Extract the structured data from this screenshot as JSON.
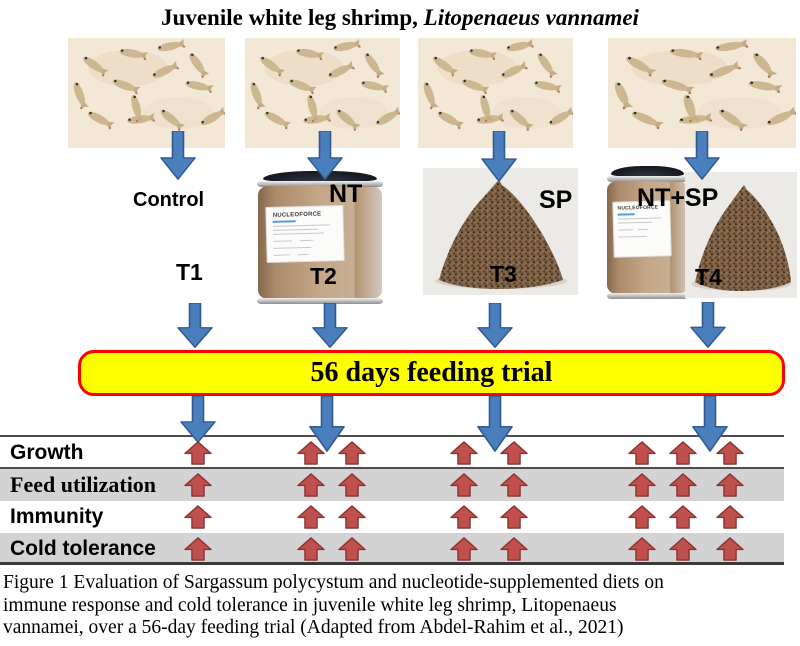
{
  "title": {
    "prefix": "Juvenile white leg shrimp, ",
    "species": "Litopenaeus vannamei"
  },
  "columns": [
    {
      "diet": "Control",
      "treatment": "T1",
      "supplement_items": []
    },
    {
      "diet": "NT",
      "treatment": "T2",
      "supplement_items": [
        "nucleotide-canister"
      ]
    },
    {
      "diet": "SP",
      "treatment": "T3",
      "supplement_items": [
        "sargassum-powder"
      ]
    },
    {
      "diet": "NT+SP",
      "treatment": "T4",
      "supplement_items": [
        "nucleotide-canister",
        "sargassum-powder"
      ]
    }
  ],
  "canister_brand": "NUCLEOFORCE",
  "banner": {
    "label": "56 days feeding trial"
  },
  "outcome_table": {
    "rows": [
      {
        "label": "Growth",
        "arrows_per_treatment": [
          1,
          2,
          2,
          3
        ]
      },
      {
        "label": "Feed utilization",
        "arrows_per_treatment": [
          1,
          2,
          2,
          3
        ]
      },
      {
        "label": "Immunity",
        "arrows_per_treatment": [
          1,
          2,
          2,
          3
        ]
      },
      {
        "label": "Cold tolerance",
        "arrows_per_treatment": [
          1,
          2,
          2,
          3
        ]
      }
    ]
  },
  "caption": {
    "lines": [
      "Figure 1 Evaluation of Sargassum polycystum and nucleotide-supplemented diets on",
      "immune response and cold tolerance in juvenile white leg shrimp, Litopenaeus",
      "vannamei, over a 56-day feeding trial (Adapted from Abdel-Rahim et al., 2021)"
    ]
  },
  "colors": {
    "arrow_blue": "#4a7ebc",
    "arrow_blue_stroke": "#2f5a92",
    "arrow_red": "#c0504d",
    "arrow_red_stroke": "#8a3432",
    "banner_fill": "#ffff00",
    "banner_border": "#fe0000",
    "table_row_gray": "#d3d3d3",
    "photo_background": "#f3e7d6"
  }
}
